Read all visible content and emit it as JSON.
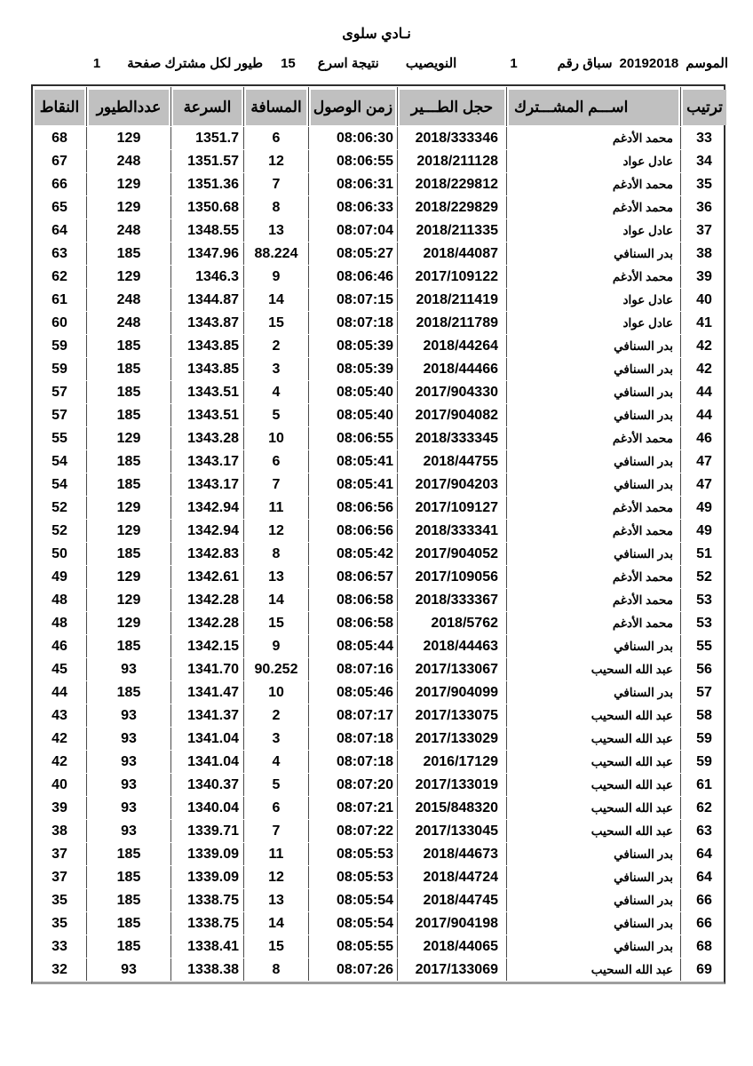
{
  "page": {
    "title": "نـادي سلوى"
  },
  "info": {
    "season_label": "الموسم",
    "season_value": "20192018",
    "race_label": "سباق رقم",
    "race_value": "1",
    "location": "النويصيب",
    "result_label": "نتيجة اسرع",
    "fastest_count": "15",
    "per_member_label": "طيور لكل مشترك صفحة",
    "page_number": "1"
  },
  "colors": {
    "header_bg": "#c0c0c0"
  },
  "table": {
    "headers": {
      "rank": "ترتيب",
      "name": "اســـم المشـــترك",
      "ring": "حجل الطـــير",
      "time": "زمن الوصول",
      "distance": "المسافة",
      "speed": "السرعة",
      "birds": "عددالطيور",
      "points": "النقاط"
    },
    "rows": [
      {
        "rank": "33",
        "name": "محمد الأدغم",
        "ring": "2018/333346",
        "time": "08:06:30",
        "distance": "6",
        "speed": "1351.7",
        "birds": "129",
        "points": "68"
      },
      {
        "rank": "34",
        "name": "عادل عواد",
        "ring": "2018/211128",
        "time": "08:06:55",
        "distance": "12",
        "speed": "1351.57",
        "birds": "248",
        "points": "67"
      },
      {
        "rank": "35",
        "name": "محمد الأدغم",
        "ring": "2018/229812",
        "time": "08:06:31",
        "distance": "7",
        "speed": "1351.36",
        "birds": "129",
        "points": "66"
      },
      {
        "rank": "36",
        "name": "محمد الأدغم",
        "ring": "2018/229829",
        "time": "08:06:33",
        "distance": "8",
        "speed": "1350.68",
        "birds": "129",
        "points": "65"
      },
      {
        "rank": "37",
        "name": "عادل عواد",
        "ring": "2018/211335",
        "time": "08:07:04",
        "distance": "13",
        "speed": "1348.55",
        "birds": "248",
        "points": "64"
      },
      {
        "rank": "38",
        "name": "بدر السنافي",
        "ring": "2018/44087",
        "time": "08:05:27",
        "distance": "88.224",
        "speed": "1347.96",
        "birds": "185",
        "points": "63"
      },
      {
        "rank": "39",
        "name": "محمد الأدغم",
        "ring": "2017/109122",
        "time": "08:06:46",
        "distance": "9",
        "speed": "1346.3",
        "birds": "129",
        "points": "62"
      },
      {
        "rank": "40",
        "name": "عادل عواد",
        "ring": "2018/211419",
        "time": "08:07:15",
        "distance": "14",
        "speed": "1344.87",
        "birds": "248",
        "points": "61"
      },
      {
        "rank": "41",
        "name": "عادل عواد",
        "ring": "2018/211789",
        "time": "08:07:18",
        "distance": "15",
        "speed": "1343.87",
        "birds": "248",
        "points": "60"
      },
      {
        "rank": "42",
        "name": "بدر السنافي",
        "ring": "2018/44264",
        "time": "08:05:39",
        "distance": "2",
        "speed": "1343.85",
        "birds": "185",
        "points": "59"
      },
      {
        "rank": "42",
        "name": "بدر السنافي",
        "ring": "2018/44466",
        "time": "08:05:39",
        "distance": "3",
        "speed": "1343.85",
        "birds": "185",
        "points": "59"
      },
      {
        "rank": "44",
        "name": "بدر السنافي",
        "ring": "2017/904330",
        "time": "08:05:40",
        "distance": "4",
        "speed": "1343.51",
        "birds": "185",
        "points": "57"
      },
      {
        "rank": "44",
        "name": "بدر السنافي",
        "ring": "2017/904082",
        "time": "08:05:40",
        "distance": "5",
        "speed": "1343.51",
        "birds": "185",
        "points": "57"
      },
      {
        "rank": "46",
        "name": "محمد الأدغم",
        "ring": "2018/333345",
        "time": "08:06:55",
        "distance": "10",
        "speed": "1343.28",
        "birds": "129",
        "points": "55"
      },
      {
        "rank": "47",
        "name": "بدر السنافي",
        "ring": "2018/44755",
        "time": "08:05:41",
        "distance": "6",
        "speed": "1343.17",
        "birds": "185",
        "points": "54"
      },
      {
        "rank": "47",
        "name": "بدر السنافي",
        "ring": "2017/904203",
        "time": "08:05:41",
        "distance": "7",
        "speed": "1343.17",
        "birds": "185",
        "points": "54"
      },
      {
        "rank": "49",
        "name": "محمد الأدغم",
        "ring": "2017/109127",
        "time": "08:06:56",
        "distance": "11",
        "speed": "1342.94",
        "birds": "129",
        "points": "52"
      },
      {
        "rank": "49",
        "name": "محمد الأدغم",
        "ring": "2018/333341",
        "time": "08:06:56",
        "distance": "12",
        "speed": "1342.94",
        "birds": "129",
        "points": "52"
      },
      {
        "rank": "51",
        "name": "بدر السنافي",
        "ring": "2017/904052",
        "time": "08:05:42",
        "distance": "8",
        "speed": "1342.83",
        "birds": "185",
        "points": "50"
      },
      {
        "rank": "52",
        "name": "محمد الأدغم",
        "ring": "2017/109056",
        "time": "08:06:57",
        "distance": "13",
        "speed": "1342.61",
        "birds": "129",
        "points": "49"
      },
      {
        "rank": "53",
        "name": "محمد الأدغم",
        "ring": "2018/333367",
        "time": "08:06:58",
        "distance": "14",
        "speed": "1342.28",
        "birds": "129",
        "points": "48"
      },
      {
        "rank": "53",
        "name": "محمد الأدغم",
        "ring": "2018/5762",
        "time": "08:06:58",
        "distance": "15",
        "speed": "1342.28",
        "birds": "129",
        "points": "48"
      },
      {
        "rank": "55",
        "name": "بدر السنافي",
        "ring": "2018/44463",
        "time": "08:05:44",
        "distance": "9",
        "speed": "1342.15",
        "birds": "185",
        "points": "46"
      },
      {
        "rank": "56",
        "name": "عبد الله السحيب",
        "ring": "2017/133067",
        "time": "08:07:16",
        "distance": "90.252",
        "speed": "1341.70",
        "birds": "93",
        "points": "45"
      },
      {
        "rank": "57",
        "name": "بدر السنافي",
        "ring": "2017/904099",
        "time": "08:05:46",
        "distance": "10",
        "speed": "1341.47",
        "birds": "185",
        "points": "44"
      },
      {
        "rank": "58",
        "name": "عبد الله السحيب",
        "ring": "2017/133075",
        "time": "08:07:17",
        "distance": "2",
        "speed": "1341.37",
        "birds": "93",
        "points": "43"
      },
      {
        "rank": "59",
        "name": "عبد الله السحيب",
        "ring": "2017/133029",
        "time": "08:07:18",
        "distance": "3",
        "speed": "1341.04",
        "birds": "93",
        "points": "42"
      },
      {
        "rank": "59",
        "name": "عبد الله السحيب",
        "ring": "2016/17129",
        "time": "08:07:18",
        "distance": "4",
        "speed": "1341.04",
        "birds": "93",
        "points": "42"
      },
      {
        "rank": "61",
        "name": "عبد الله السحيب",
        "ring": "2017/133019",
        "time": "08:07:20",
        "distance": "5",
        "speed": "1340.37",
        "birds": "93",
        "points": "40"
      },
      {
        "rank": "62",
        "name": "عبد الله السحيب",
        "ring": "2015/848320",
        "time": "08:07:21",
        "distance": "6",
        "speed": "1340.04",
        "birds": "93",
        "points": "39"
      },
      {
        "rank": "63",
        "name": "عبد الله السحيب",
        "ring": "2017/133045",
        "time": "08:07:22",
        "distance": "7",
        "speed": "1339.71",
        "birds": "93",
        "points": "38"
      },
      {
        "rank": "64",
        "name": "بدر السنافي",
        "ring": "2018/44673",
        "time": "08:05:53",
        "distance": "11",
        "speed": "1339.09",
        "birds": "185",
        "points": "37"
      },
      {
        "rank": "64",
        "name": "بدر السنافي",
        "ring": "2018/44724",
        "time": "08:05:53",
        "distance": "12",
        "speed": "1339.09",
        "birds": "185",
        "points": "37"
      },
      {
        "rank": "66",
        "name": "بدر السنافي",
        "ring": "2018/44745",
        "time": "08:05:54",
        "distance": "13",
        "speed": "1338.75",
        "birds": "185",
        "points": "35"
      },
      {
        "rank": "66",
        "name": "بدر السنافي",
        "ring": "2017/904198",
        "time": "08:05:54",
        "distance": "14",
        "speed": "1338.75",
        "birds": "185",
        "points": "35"
      },
      {
        "rank": "68",
        "name": "بدر السنافي",
        "ring": "2018/44065",
        "time": "08:05:55",
        "distance": "15",
        "speed": "1338.41",
        "birds": "185",
        "points": "33"
      },
      {
        "rank": "69",
        "name": "عبد الله السحيب",
        "ring": "2017/133069",
        "time": "08:07:26",
        "distance": "8",
        "speed": "1338.38",
        "birds": "93",
        "points": "32"
      }
    ]
  }
}
